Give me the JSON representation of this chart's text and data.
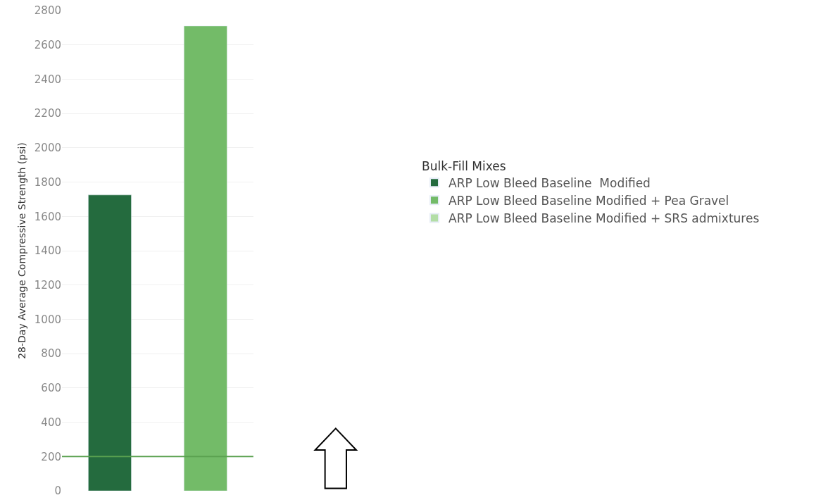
{
  "chart_data": {
    "type": "bar",
    "ylabel": "28-Day Average Compressive Strength (psi)",
    "legend_title": "Bulk-Fill Mixes",
    "categories": [
      null,
      null
    ],
    "series": [
      {
        "name": "ARP Low Bleed Baseline  Modified",
        "color": "#246b3e",
        "values": [
          1725,
          null
        ]
      },
      {
        "name": "ARP Low Bleed Baseline Modified + Pea Gravel",
        "color": "#73bb68",
        "values": [
          null,
          2710
        ]
      },
      {
        "name": "ARP Low Bleed Baseline Modified + SRS admixtures",
        "color": "#b3dea6",
        "values": [
          null,
          null
        ]
      }
    ],
    "ylim": [
      0,
      2800
    ],
    "yticks": [
      0,
      200,
      400,
      600,
      800,
      1000,
      1200,
      1400,
      1600,
      1800,
      2000,
      2200,
      2400,
      2600,
      2800
    ],
    "ref_lines": [
      {
        "axis": "y",
        "value": 200,
        "color": "#5aa14f"
      }
    ],
    "grid": "y",
    "legend": "right"
  }
}
